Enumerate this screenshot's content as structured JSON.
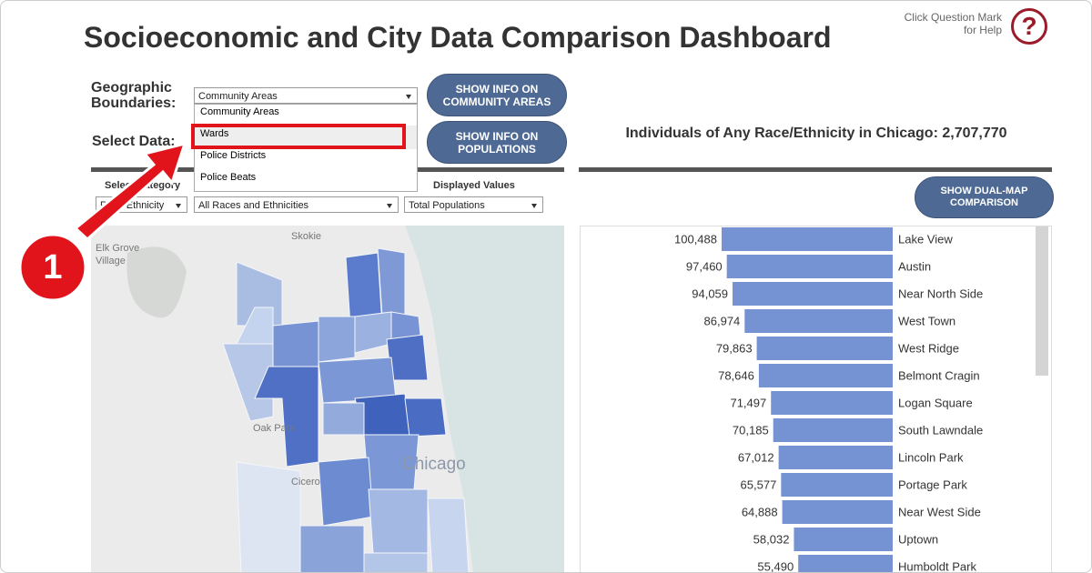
{
  "header": {
    "title": "Socioeconomic and City Data Comparison Dashboard",
    "help_text": [
      "Click Question Mark",
      "for Help"
    ],
    "help_icon": "?"
  },
  "controls": {
    "boundaries_label": [
      "Geographic",
      "Boundaries:"
    ],
    "boundaries_selected": "Community Areas",
    "boundaries_options": [
      "Community Areas",
      "Wards",
      "Police Districts",
      "Police Beats"
    ],
    "select_data_label": "Select Data:",
    "category_label": "Select Category",
    "category_value": "Race/Ethnicity",
    "race_value": "All Races and Ethnicities",
    "displayed_label": "Displayed Values",
    "displayed_value": "Total Populations"
  },
  "buttons": {
    "community_areas": [
      "SHOW INFO ON",
      "COMMUNITY AREAS"
    ],
    "populations": [
      "SHOW INFO ON",
      "POPULATIONS"
    ],
    "dual_map": [
      "SHOW DUAL-MAP",
      "COMPARISON"
    ]
  },
  "map": {
    "labels": [
      "Elk Grove",
      "Village",
      "Skokie",
      "Oak Park",
      "Cicero",
      "Chicago"
    ]
  },
  "annotation": {
    "step": "1"
  },
  "chart_data": {
    "type": "bar",
    "orientation": "horizontal",
    "title": "Individuals of Any Race/Ethnicity in Chicago: 2,707,770",
    "categories": [
      "Lake View",
      "Austin",
      "Near North Side",
      "West Town",
      "West Ridge",
      "Belmont Cragin",
      "Logan Square",
      "South Lawndale",
      "Lincoln Park",
      "Portage Park",
      "Near West Side",
      "Uptown",
      "Humboldt Park"
    ],
    "values": [
      100488,
      97460,
      94059,
      86974,
      79863,
      78646,
      71497,
      70185,
      67012,
      65577,
      64888,
      58032,
      55490
    ],
    "value_labels": [
      "100,488",
      "97,460",
      "94,059",
      "86,974",
      "79,863",
      "78,646",
      "71,497",
      "70,185",
      "67,012",
      "65,577",
      "64,888",
      "58,032",
      "55,490"
    ],
    "color": "#7593d2"
  }
}
